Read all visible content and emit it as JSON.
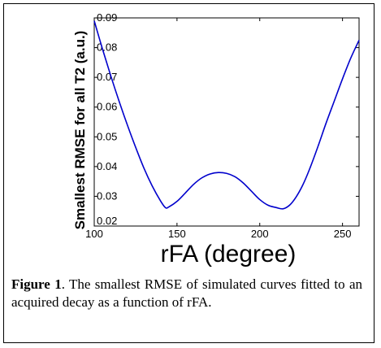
{
  "chart_data": {
    "type": "line",
    "title": "",
    "xlabel": "rFA (degree)",
    "ylabel": "Smallest RMSE for all T2 (a.u.)",
    "xlim": [
      100,
      260
    ],
    "ylim": [
      0.02,
      0.09
    ],
    "xticks": [
      100,
      150,
      200,
      250
    ],
    "yticks": [
      0.02,
      0.03,
      0.04,
      0.05,
      0.06,
      0.07,
      0.08,
      0.09
    ],
    "grid": false,
    "series": [
      {
        "color": "#0000cc",
        "x": [
          100,
          105,
          110,
          115,
          120,
          125,
          130,
          135,
          140,
          143,
          145,
          150,
          155,
          160,
          165,
          170,
          175,
          180,
          185,
          190,
          195,
          200,
          205,
          210,
          214,
          218,
          222,
          226,
          230,
          235,
          240,
          245,
          250,
          255,
          260
        ],
        "y": [
          0.089,
          0.0795,
          0.0705,
          0.062,
          0.054,
          0.0465,
          0.0395,
          0.0335,
          0.0285,
          0.0262,
          0.0264,
          0.0283,
          0.0311,
          0.034,
          0.0362,
          0.0375,
          0.038,
          0.0377,
          0.0366,
          0.0345,
          0.0317,
          0.0289,
          0.027,
          0.0262,
          0.0258,
          0.027,
          0.0298,
          0.0338,
          0.039,
          0.0465,
          0.0545,
          0.062,
          0.0695,
          0.0765,
          0.0825
        ]
      }
    ]
  },
  "caption": {
    "label": "Figure 1",
    "text": ". The smallest RMSE of simulated curves fitted to an acquired decay as a function of rFA."
  }
}
